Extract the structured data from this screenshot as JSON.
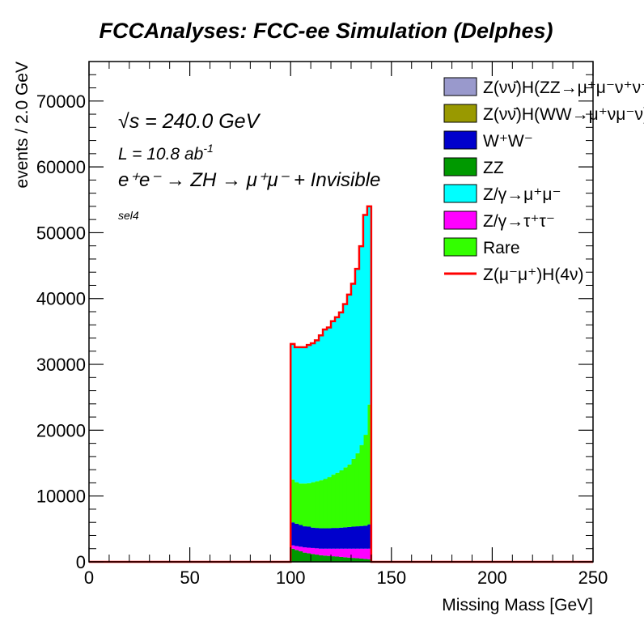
{
  "chart_data": {
    "type": "bar",
    "stacked": true,
    "title": "FCCAnalyses: FCC-ee Simulation (Delphes)",
    "xlabel": "Missing Mass [GeV]",
    "ylabel": "events / 2.0 GeV",
    "xlim": [
      0,
      250
    ],
    "ylim": [
      0,
      76000
    ],
    "x_ticks": [
      "0",
      "50",
      "100",
      "150",
      "200",
      "250"
    ],
    "y_ticks": [
      "0",
      "10000",
      "20000",
      "30000",
      "40000",
      "50000",
      "60000",
      "70000"
    ],
    "bin_width": 2.0,
    "bin_edges_start": 100,
    "annotations": {
      "sqrt_s": "√s = 240.0 GeV",
      "lumi_base": "L = 10.8 ab",
      "lumi_exp": "-1",
      "process": "e⁺e⁻ → ZH → μ⁺μ⁻ + Invisible",
      "selection": "sel4"
    },
    "legend_position": "top-right",
    "legend": [
      {
        "label": "Z(νν̄)H(ZZ→μ⁺μ⁻ν⁺ν⁻)",
        "color": "#9999cc",
        "kind": "fill"
      },
      {
        "label": "Z(νν̄)H(WW→μ⁺νμ⁻ν)",
        "color": "#999900",
        "kind": "fill"
      },
      {
        "label": "W⁺W⁻",
        "color": "#0000cc",
        "kind": "fill"
      },
      {
        "label": "ZZ",
        "color": "#009900",
        "kind": "fill"
      },
      {
        "label": "Z/γ→μ⁺μ⁻",
        "color": "#00ffff",
        "kind": "fill"
      },
      {
        "label": "Z/γ→τ⁺τ⁻",
        "color": "#ff00ff",
        "kind": "fill"
      },
      {
        "label": "Rare",
        "color": "#33ff00",
        "kind": "fill"
      },
      {
        "label": "Z(μ⁻μ⁺)H(4ν)",
        "color": "#ff0000",
        "kind": "line"
      }
    ],
    "x": [
      101,
      103,
      105,
      107,
      109,
      111,
      113,
      115,
      117,
      119,
      121,
      123,
      125,
      127,
      129,
      131,
      133,
      135,
      137,
      139
    ],
    "series": [
      {
        "name": "ZZ",
        "color": "#009900",
        "values": [
          2000,
          1800,
          1600,
          1400,
          1300,
          1200,
          1100,
          1000,
          950,
          900,
          850,
          800,
          750,
          700,
          650,
          600,
          550,
          500,
          450,
          400
        ]
      },
      {
        "name": "Z/γ→τ⁺τ⁻",
        "color": "#ff00ff",
        "values": [
          500,
          600,
          700,
          800,
          850,
          900,
          950,
          1000,
          1050,
          1100,
          1150,
          1200,
          1250,
          1300,
          1350,
          1400,
          1450,
          1500,
          1550,
          1600
        ]
      },
      {
        "name": "W⁺W⁻",
        "color": "#0000cc",
        "values": [
          3500,
          3400,
          3300,
          3200,
          3200,
          3100,
          3100,
          3100,
          3100,
          3100,
          3150,
          3150,
          3200,
          3250,
          3300,
          3350,
          3400,
          3450,
          3500,
          3700
        ]
      },
      {
        "name": "Rare",
        "color": "#33ff00",
        "values": [
          6500,
          6300,
          6300,
          6500,
          6600,
          6900,
          7100,
          7300,
          7500,
          7800,
          8100,
          8400,
          8700,
          9100,
          9500,
          10300,
          11100,
          12300,
          13800,
          18200
        ]
      },
      {
        "name": "Z/γ→μ⁺μ⁻",
        "color": "#00ffff",
        "values": [
          20600,
          20500,
          20700,
          20700,
          21000,
          21100,
          21400,
          22000,
          22700,
          22700,
          23300,
          23600,
          24000,
          24800,
          25800,
          26600,
          28000,
          30200,
          33400,
          30100
        ]
      }
    ],
    "signal_line": {
      "name": "Z(μ⁻μ⁺)H(4ν)",
      "color": "#ff0000",
      "values": [
        0,
        0,
        0,
        0,
        0,
        0,
        0,
        0,
        0,
        0,
        0,
        0,
        0,
        0,
        0,
        0,
        0,
        0,
        0,
        0
      ]
    }
  }
}
